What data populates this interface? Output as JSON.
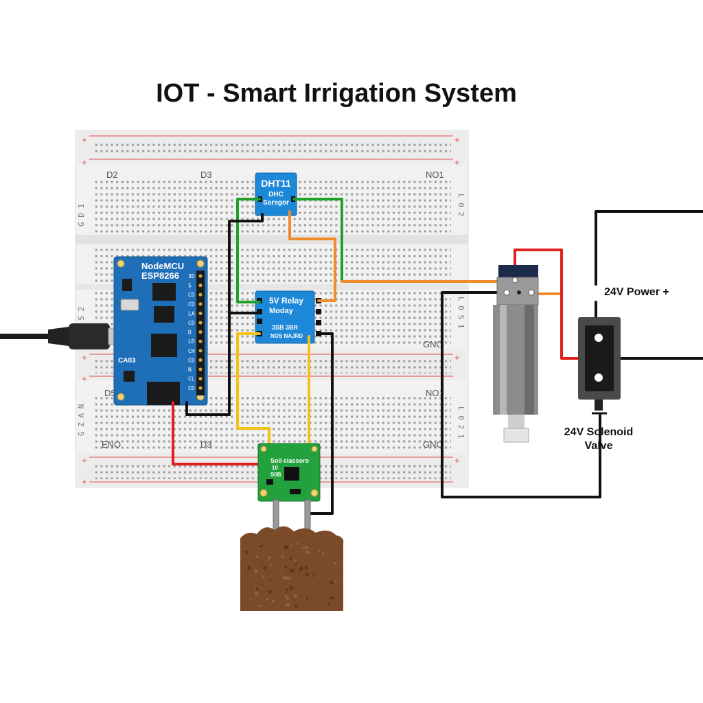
{
  "title": "IOT - Smart Irrigation System",
  "breadboard": {
    "top_labels": [
      "D2",
      "D3",
      "NO1"
    ],
    "mid_labels": [
      "D5",
      "NO1"
    ],
    "bottom_labels": [
      "ENO",
      "D3",
      "GNO"
    ],
    "gnd_label": "GNO",
    "left_top_side": "G D 1",
    "left_mid_side": "A S 2",
    "left_bot_side": "G Z A N",
    "right_top_side": "L 0 2",
    "right_mid_side": "L 0 S 1",
    "right_bot_side": "L 0 2 1",
    "rail_plus": "+",
    "rail_minus": "–"
  },
  "nodemcu": {
    "name_line1": "NodeMCU",
    "name_line2": "ESP8266",
    "pins": [
      "3D",
      "S",
      "CD",
      "CD",
      "LA",
      "CD",
      "D",
      "LD",
      "CH",
      "CD",
      "N",
      "CL",
      "CD"
    ],
    "sub_label": "CA03"
  },
  "dht11": {
    "line1": "DHT11",
    "line2": "DHC",
    "line3": "Sarsgor"
  },
  "relay": {
    "line1": "5V Relay",
    "line2": "Moday",
    "line3": "3SB  3BR",
    "line4": "NOS  NAJRD"
  },
  "soil": {
    "line1": "Soil  classoro",
    "line2": "10",
    "line3": "S0B"
  },
  "external": {
    "power_label": "24V Power +",
    "valve_label_line1": "24V Solenoid",
    "valve_label_line2": "Valve"
  },
  "colors": {
    "wire_green": "#1ea02a",
    "wire_orange": "#f08a2a",
    "wire_red": "#e02020",
    "wire_yellow": "#f2c21b",
    "wire_black": "#111111",
    "board_blue": "#1f6fb8",
    "relay_blue": "#1e88d8",
    "soil_green": "#23a13c",
    "soil_brown": "#7a4a2a"
  }
}
